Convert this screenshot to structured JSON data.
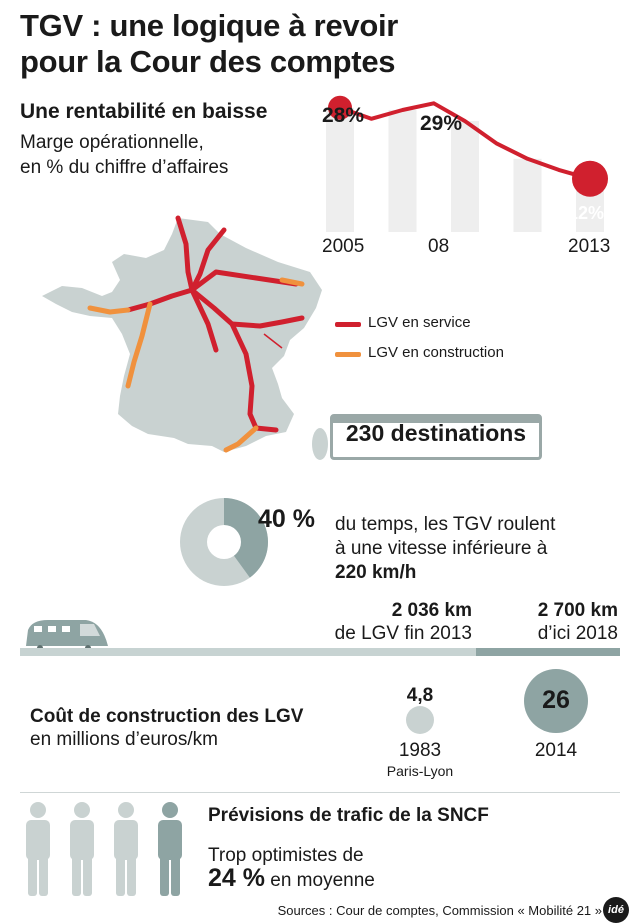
{
  "title_line1": "TGV : une logique à revoir",
  "title_line2": "pour la Cour des comptes",
  "margin": {
    "heading": "Une rentabilité en baisse",
    "sub1": "Marge opérationnelle,",
    "sub2": "en % du chiffre d’affaires",
    "label_start": "28%",
    "label_mid": "29%",
    "label_end": "12%",
    "axis_2005": "2005",
    "axis_08": "08",
    "axis_2013": "2013"
  },
  "map": {
    "legend_service": "LGV en service",
    "legend_construction": "LGV en construction",
    "color_service": "#d0202e",
    "color_construction": "#f0913d",
    "land_color": "#c9d2d1"
  },
  "destinations": "230 destinations",
  "speed": {
    "percent": "40 %",
    "line1": "du temps, les TGV roulent",
    "line2": "à une vitesse inférieure à",
    "line3": "220 km/h",
    "fraction": 0.4
  },
  "network": {
    "km_2013": "2 036 km",
    "km_2013_sub": "de LGV fin 2013",
    "km_2018": "2 700 km",
    "km_2018_sub": "d’ici 2018"
  },
  "cost": {
    "heading": "Coût de construction des LGV",
    "sub": "en millions d’euros/km",
    "v1983": "4,8",
    "y1983": "1983",
    "route1983": "Paris-Lyon",
    "v2014": "26",
    "y2014": "2014"
  },
  "forecast": {
    "heading": "Prévisions de trafic de la SNCF",
    "line1": "Trop optimistes de",
    "percent": "24 %",
    "suffix": "en moyenne"
  },
  "sources": "Sources : Cour de comptes, Commission « Mobilité 21 »",
  "logo": "idé",
  "chart_data": {
    "type": "line",
    "x": [
      "2005",
      "2006",
      "2007",
      "2008",
      "2009",
      "2010",
      "2011",
      "2012",
      "2013"
    ],
    "values": [
      28,
      25.5,
      27.5,
      29,
      25,
      20,
      16.5,
      14,
      12
    ],
    "point_labels": {
      "2005": "28%",
      "2008": "29%",
      "2013": "12%"
    },
    "xticks": [
      "2005",
      "08",
      "2013"
    ],
    "title": "Une rentabilité en baisse",
    "ylabel": "Marge opérationnelle, en % du chiffre d’affaires",
    "ylim": [
      0,
      32
    ],
    "grid": false,
    "color": "#d0202e",
    "bar_color": "#eeeeee"
  }
}
